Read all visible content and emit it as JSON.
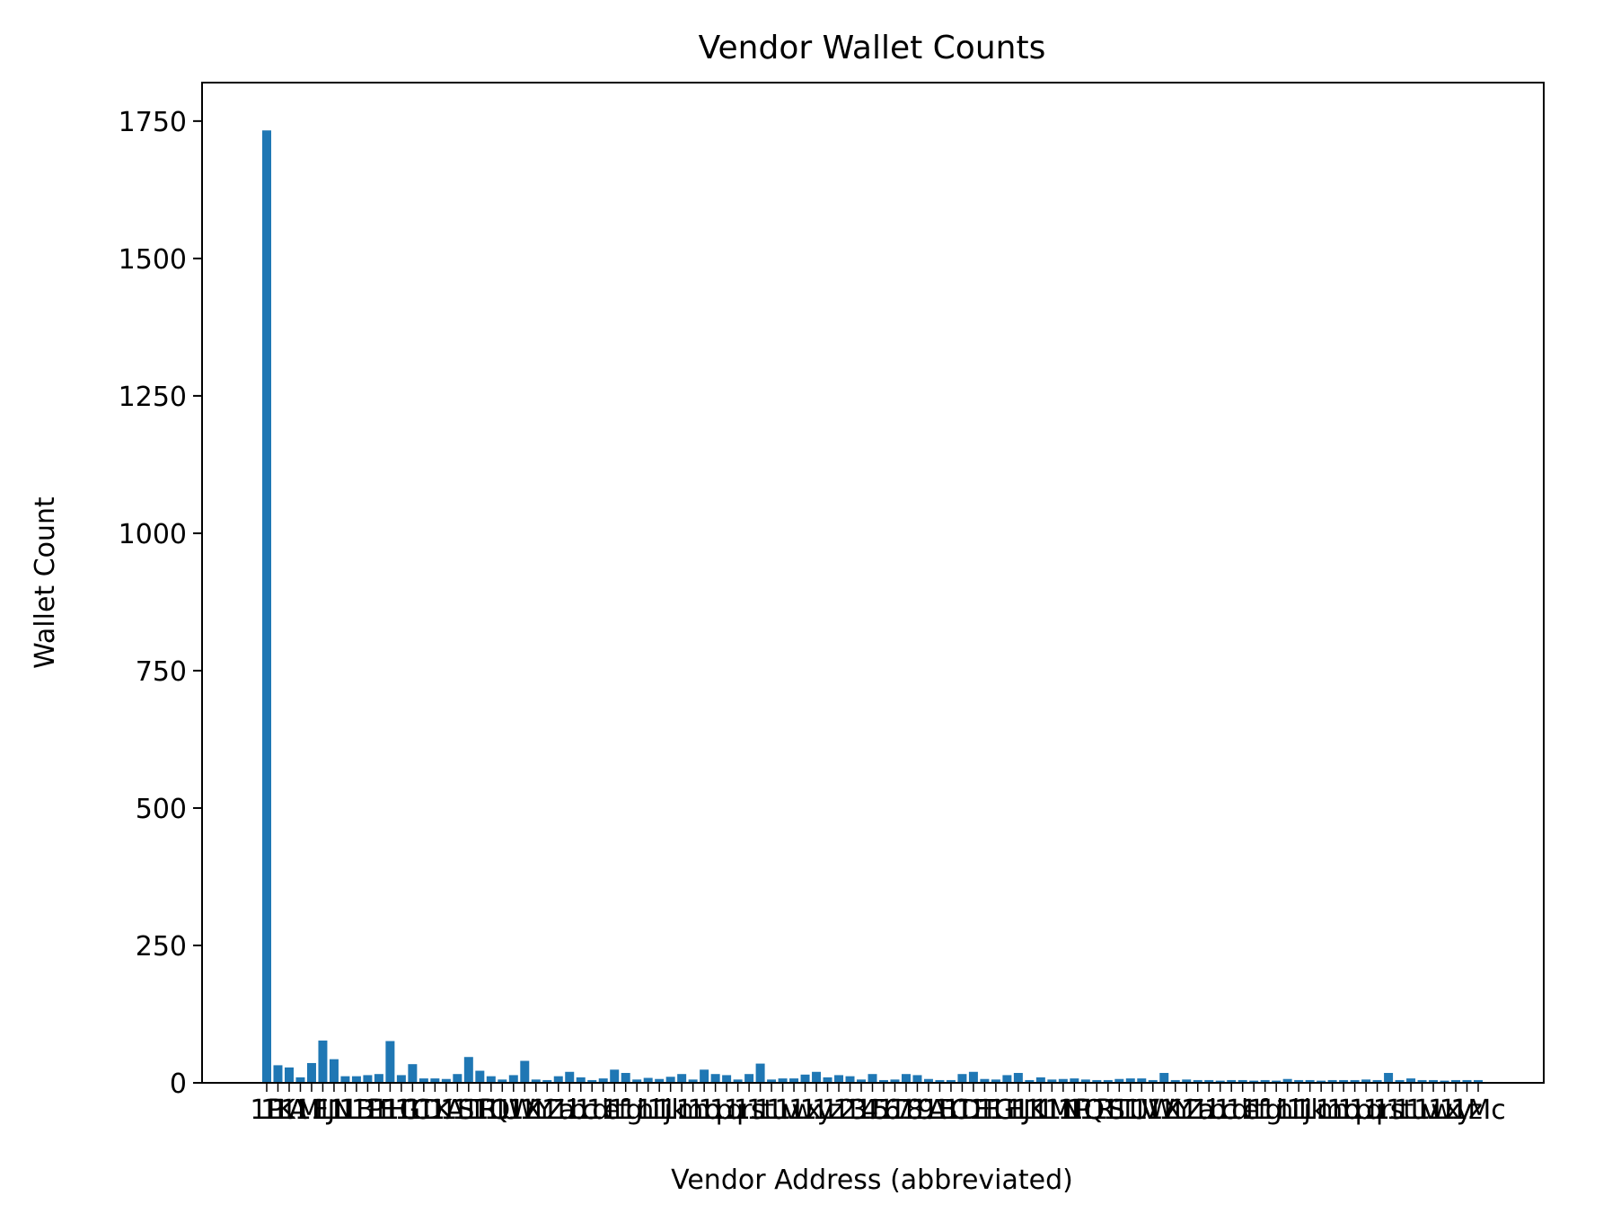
{
  "chart_data": {
    "type": "bar",
    "title": "Vendor Wallet Counts",
    "xlabel": "Vendor Address (abbreviated)",
    "ylabel": "Wallet Count",
    "ylim": [
      0,
      1820
    ],
    "yticks": [
      0,
      250,
      500,
      750,
      1000,
      1250,
      1500,
      1750
    ],
    "grid": false,
    "bar_color": "#1f77b4",
    "categories": [
      "1P",
      "1K",
      "1A",
      "1M",
      "1E",
      "1J",
      "1N",
      "1L",
      "1B",
      "1P",
      "1F",
      "1H",
      "1G",
      "1C",
      "1D",
      "1K",
      "1A",
      "1S",
      "1T",
      "1R",
      "1Q",
      "1U",
      "1W",
      "1X",
      "1Y",
      "1Z",
      "1a",
      "1b",
      "1c",
      "1d",
      "1e",
      "1f",
      "1g",
      "1h",
      "1i",
      "1j",
      "1k",
      "1m",
      "1n",
      "1o",
      "1p",
      "1q",
      "1r",
      "1s",
      "1t",
      "1u",
      "1v",
      "1w",
      "1x",
      "1y",
      "1z",
      "12",
      "13",
      "14",
      "15",
      "16",
      "17",
      "18",
      "19",
      "1A",
      "1B",
      "1C",
      "1D",
      "1E",
      "1F",
      "1G",
      "1H",
      "1J",
      "1K",
      "1L",
      "1M",
      "1N",
      "1P",
      "1Q",
      "1R",
      "1S",
      "1T",
      "1U",
      "1V",
      "1W",
      "1X",
      "1Y",
      "1Z",
      "1a",
      "1b",
      "1c",
      "1d",
      "1e",
      "1f",
      "1g",
      "1h",
      "1i",
      "1j",
      "1k",
      "1m",
      "1n",
      "1o",
      "1p",
      "1q",
      "1r",
      "1s",
      "1t",
      "1u",
      "1v",
      "1w",
      "1x",
      "1y",
      "1z",
      "1Mc"
    ],
    "values": [
      1733,
      32,
      28,
      10,
      36,
      77,
      43,
      12,
      12,
      14,
      16,
      76,
      14,
      34,
      8,
      8,
      7,
      16,
      47,
      22,
      12,
      6,
      14,
      40,
      6,
      5,
      12,
      20,
      10,
      5,
      8,
      24,
      18,
      6,
      9,
      7,
      11,
      16,
      6,
      24,
      16,
      14,
      6,
      16,
      35,
      6,
      8,
      8,
      15,
      20,
      10,
      14,
      12,
      6,
      16,
      5,
      6,
      16,
      14,
      7,
      5,
      5,
      16,
      20,
      7,
      6,
      14,
      18,
      5,
      10,
      6,
      7,
      8,
      6,
      5,
      5,
      7,
      8,
      8,
      5,
      18,
      5,
      6,
      5,
      5,
      4,
      5,
      5,
      4,
      5,
      4,
      7,
      5,
      5,
      4,
      5,
      5,
      5,
      6,
      5,
      18,
      5,
      8,
      5,
      5,
      4,
      5,
      5,
      5
    ]
  }
}
